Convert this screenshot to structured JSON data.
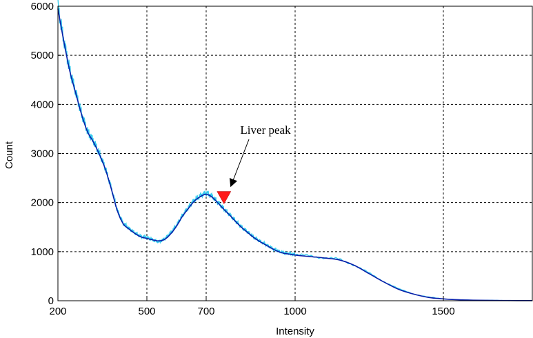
{
  "chart_data": {
    "type": "line",
    "title": "",
    "xlabel": "Intensity",
    "ylabel": "Count",
    "xlim": [
      200,
      1800
    ],
    "ylim": [
      0,
      6000
    ],
    "x_ticks": [
      200,
      500,
      700,
      1000,
      1500
    ],
    "y_ticks": [
      0,
      1000,
      2000,
      3000,
      4000,
      5000,
      6000
    ],
    "grid": true,
    "colors": {
      "raw": "#33ccee",
      "smoothed": "#0a1ea8",
      "marker": "#ff1a1a",
      "grid": "#000000"
    },
    "series": [
      {
        "role": "raw",
        "x": [
          200,
          220,
          240,
          260,
          280,
          300,
          320,
          340,
          360,
          380,
          400,
          420,
          440,
          460,
          480,
          500,
          520,
          540,
          560,
          580,
          600,
          620,
          640,
          660,
          680,
          700,
          720,
          740,
          760,
          780,
          800,
          820,
          840,
          860,
          880,
          900,
          920,
          940,
          960,
          980,
          1000,
          1050,
          1100,
          1150,
          1200,
          1250,
          1300,
          1350,
          1400,
          1450,
          1500,
          1550,
          1600,
          1650,
          1700,
          1750,
          1800
        ],
        "values": [
          6000,
          5300,
          4700,
          4250,
          3800,
          3450,
          3250,
          3000,
          2700,
          2300,
          1850,
          1580,
          1470,
          1380,
          1310,
          1290,
          1240,
          1200,
          1260,
          1380,
          1540,
          1740,
          1900,
          2050,
          2140,
          2200,
          2130,
          2000,
          1870,
          1750,
          1620,
          1500,
          1400,
          1300,
          1220,
          1150,
          1080,
          1020,
          980,
          960,
          940,
          910,
          880,
          840,
          730,
          560,
          390,
          240,
          140,
          70,
          40,
          20,
          12,
          8,
          5,
          3,
          2
        ]
      },
      {
        "role": "smoothed",
        "x": [
          200,
          220,
          240,
          260,
          280,
          300,
          320,
          340,
          360,
          380,
          400,
          420,
          440,
          460,
          480,
          500,
          520,
          540,
          560,
          580,
          600,
          620,
          640,
          660,
          680,
          700,
          720,
          740,
          760,
          780,
          800,
          820,
          840,
          860,
          880,
          900,
          920,
          940,
          960,
          980,
          1000,
          1050,
          1100,
          1150,
          1200,
          1250,
          1300,
          1350,
          1400,
          1450,
          1500,
          1550,
          1600,
          1650,
          1700,
          1750,
          1800
        ],
        "values": [
          5950,
          5280,
          4680,
          4230,
          3790,
          3440,
          3230,
          2980,
          2680,
          2280,
          1840,
          1570,
          1460,
          1370,
          1300,
          1270,
          1240,
          1220,
          1250,
          1360,
          1520,
          1720,
          1880,
          2030,
          2120,
          2170,
          2110,
          1990,
          1860,
          1740,
          1610,
          1490,
          1390,
          1290,
          1210,
          1140,
          1070,
          1010,
          970,
          950,
          930,
          900,
          870,
          830,
          720,
          550,
          380,
          230,
          135,
          68,
          38,
          20,
          12,
          8,
          5,
          3,
          2
        ]
      }
    ],
    "markers": [
      {
        "x": 760,
        "y": 2100,
        "symbol": "triangle-down"
      }
    ],
    "annotations": [
      {
        "text": "Liver peak",
        "x": 900,
        "y": 3400,
        "arrow_to": [
          765,
          2200
        ]
      }
    ]
  }
}
